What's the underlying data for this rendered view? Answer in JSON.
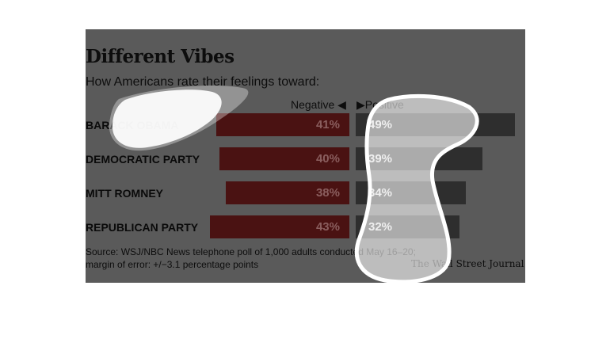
{
  "title": "Different Vibes",
  "subtitle": "How Americans rate their feelings toward:",
  "legend": {
    "negative": "Negative ◀",
    "positive": "▶Positive"
  },
  "chart_data": {
    "type": "bar",
    "title": "Different Vibes",
    "subtitle": "How Americans rate their feelings toward:",
    "categories": [
      "BARACK OBAMA",
      "DEMOCRATIC PARTY",
      "MITT ROMNEY",
      "REPUBLICAN PARTY"
    ],
    "series": [
      {
        "name": "Negative",
        "values": [
          41,
          40,
          38,
          43
        ],
        "labels": [
          "41%",
          "40%",
          "38%",
          "43%"
        ],
        "color": "#4a1212"
      },
      {
        "name": "Positive",
        "values": [
          49,
          39,
          34,
          32
        ],
        "labels": [
          "49%",
          "39%",
          "34%",
          "32%"
        ],
        "color": "#2e2e2e"
      }
    ],
    "orientation": "diverging-horizontal",
    "grid": false
  },
  "source": {
    "line1": "Source: WSJ/NBC News telephone poll of 1,000 adults conducted May 16–20;",
    "line2": "margin of error: +/−3.1 percentage points"
  },
  "credit": "The Wall Street Journal",
  "colors": {
    "panel": "#5a5a5a",
    "negative": "#4a1212",
    "positive": "#2e2e2e",
    "scribble": "#ffffff"
  }
}
